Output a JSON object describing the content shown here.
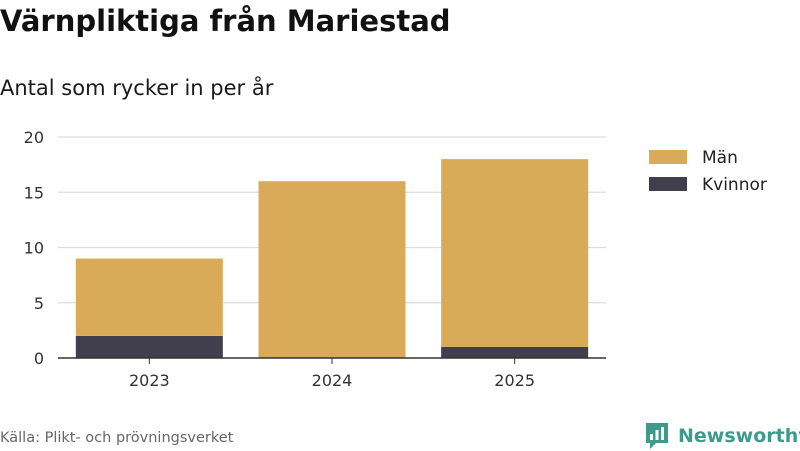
{
  "title": "Värnpliktiga från Mariestad",
  "subtitle": "Antal som rycker in per år",
  "source": "Källa: Plikt- och prövningsverket",
  "brand": "Newsworthy",
  "colors": {
    "man": "#d9ab59",
    "kvinnor": "#413f4d",
    "grid": "#dddddd",
    "axis": "#333333",
    "brand": "#3d9b8c"
  },
  "chart_data": {
    "type": "bar",
    "stacked": true,
    "categories": [
      "2023",
      "2024",
      "2025"
    ],
    "series": [
      {
        "name": "Kvinnor",
        "values": [
          2,
          0,
          1
        ]
      },
      {
        "name": "Män",
        "values": [
          7,
          16,
          17
        ]
      }
    ],
    "yticks": [
      0,
      5,
      10,
      15,
      20
    ],
    "ylim": [
      0,
      20
    ],
    "grid": true,
    "legend": [
      {
        "name": "Män",
        "color_key": "man"
      },
      {
        "name": "Kvinnor",
        "color_key": "kvinnor"
      }
    ],
    "legend_position": "right"
  }
}
